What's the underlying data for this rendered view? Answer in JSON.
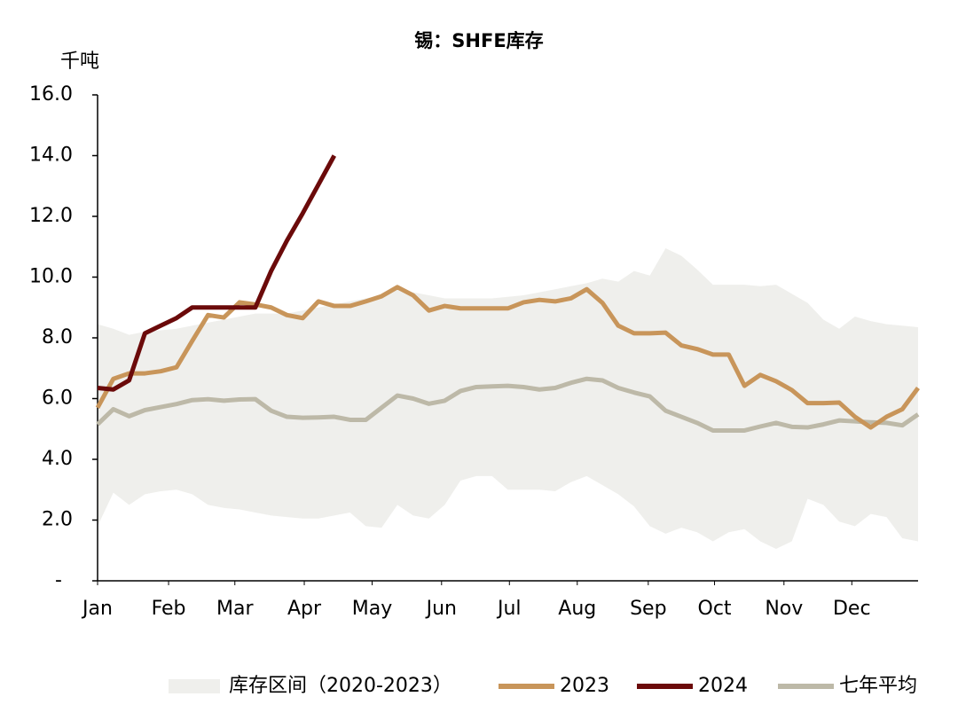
{
  "chart_data": {
    "type": "line",
    "title": "锡：SHFE库存",
    "y_label": "千吨",
    "x": [
      0,
      1,
      2,
      3,
      4,
      5,
      6,
      7,
      8,
      9,
      10,
      11,
      12,
      13,
      14,
      15,
      16,
      17,
      18,
      19,
      20,
      21,
      22,
      23,
      24,
      25,
      26,
      27,
      28,
      29,
      30,
      31,
      32,
      33,
      34,
      35,
      36,
      37,
      38,
      39,
      40,
      41,
      42,
      43,
      44,
      45,
      46,
      47,
      48,
      49,
      50,
      51,
      52
    ],
    "xlim": [
      0,
      52
    ],
    "xticks": [
      {
        "value": 0,
        "label": "Jan"
      },
      {
        "value": 4.5,
        "label": "Feb"
      },
      {
        "value": 8.7,
        "label": "Mar"
      },
      {
        "value": 13.1,
        "label": "Apr"
      },
      {
        "value": 17.4,
        "label": "May"
      },
      {
        "value": 21.8,
        "label": "Jun"
      },
      {
        "value": 26.1,
        "label": "Jul"
      },
      {
        "value": 30.4,
        "label": "Aug"
      },
      {
        "value": 34.9,
        "label": "Sep"
      },
      {
        "value": 39.1,
        "label": "Oct"
      },
      {
        "value": 43.5,
        "label": "Nov"
      },
      {
        "value": 47.8,
        "label": "Dec"
      }
    ],
    "ylim": [
      0,
      16
    ],
    "yticks": [
      {
        "value": 0,
        "label": "-"
      },
      {
        "value": 2,
        "label": "2.0"
      },
      {
        "value": 4,
        "label": "4.0"
      },
      {
        "value": 6,
        "label": "6.0"
      },
      {
        "value": 8,
        "label": "8.0"
      },
      {
        "value": 10,
        "label": "10.0"
      },
      {
        "value": 12,
        "label": "12.0"
      },
      {
        "value": 14,
        "label": "14.0"
      },
      {
        "value": 16,
        "label": "16.0"
      }
    ],
    "band": {
      "name": "库存区间（2020-2023）",
      "color": "#efefec",
      "upper": [
        8.45,
        8.3,
        8.1,
        8.2,
        8.25,
        8.3,
        8.4,
        8.5,
        8.6,
        8.7,
        8.8,
        8.8,
        8.8,
        8.9,
        9.0,
        9.1,
        9.2,
        9.3,
        9.4,
        9.6,
        9.5,
        9.4,
        9.3,
        9.3,
        9.3,
        9.3,
        9.35,
        9.4,
        9.5,
        9.6,
        9.7,
        9.8,
        9.95,
        9.85,
        10.2,
        10.05,
        10.95,
        10.7,
        10.25,
        9.75,
        9.75,
        9.75,
        9.7,
        9.75,
        9.45,
        9.15,
        8.6,
        8.3,
        8.7,
        8.55,
        8.45,
        8.4,
        8.35
      ],
      "lower": [
        1.8,
        2.9,
        2.5,
        2.85,
        2.95,
        3.0,
        2.85,
        2.5,
        2.4,
        2.35,
        2.25,
        2.15,
        2.1,
        2.05,
        2.05,
        2.15,
        2.25,
        1.8,
        1.75,
        2.5,
        2.15,
        2.05,
        2.5,
        3.3,
        3.45,
        3.45,
        3.0,
        3.0,
        3.0,
        2.95,
        3.25,
        3.45,
        3.15,
        2.85,
        2.45,
        1.8,
        1.55,
        1.75,
        1.6,
        1.3,
        1.6,
        1.7,
        1.3,
        1.05,
        1.3,
        2.7,
        2.5,
        1.95,
        1.8,
        2.2,
        2.1,
        1.4,
        1.3
      ]
    },
    "series": [
      {
        "name": "2023",
        "color": "#c8955a",
        "values": [
          5.7,
          6.65,
          6.83,
          6.83,
          6.9,
          7.03,
          7.9,
          8.75,
          8.67,
          9.17,
          9.1,
          9.0,
          8.75,
          8.65,
          9.2,
          9.05,
          9.05,
          9.2,
          9.37,
          9.67,
          9.4,
          8.9,
          9.05,
          8.97,
          8.97,
          8.97,
          8.97,
          9.17,
          9.25,
          9.2,
          9.3,
          9.6,
          9.15,
          8.4,
          8.15,
          8.15,
          8.17,
          7.75,
          7.63,
          7.45,
          7.45,
          6.42,
          6.78,
          6.57,
          6.28,
          5.85,
          5.85,
          5.87,
          5.4,
          5.05,
          5.4,
          5.65,
          6.35
        ]
      },
      {
        "name": "2024",
        "color": "#6b0a0a",
        "values": [
          6.35,
          6.3,
          6.6,
          8.15,
          8.4,
          8.65,
          9.0,
          9.0,
          9.0,
          9.0,
          9.0,
          10.2,
          11.2,
          12.1,
          13.05,
          14.0,
          null,
          null,
          null,
          null,
          null,
          null,
          null,
          null,
          null,
          null,
          null,
          null,
          null,
          null,
          null,
          null,
          null,
          null,
          null,
          null,
          null,
          null,
          null,
          null,
          null,
          null,
          null,
          null,
          null,
          null,
          null,
          null,
          null,
          null,
          null,
          null,
          null
        ]
      },
      {
        "name": "七年平均",
        "color": "#bdb9a8",
        "values": [
          5.15,
          5.65,
          5.42,
          5.62,
          5.72,
          5.82,
          5.95,
          5.98,
          5.93,
          5.97,
          5.98,
          5.6,
          5.4,
          5.37,
          5.38,
          5.4,
          5.3,
          5.3,
          5.7,
          6.1,
          6.0,
          5.83,
          5.93,
          6.25,
          6.38,
          6.4,
          6.42,
          6.38,
          6.3,
          6.35,
          6.52,
          6.65,
          6.6,
          6.35,
          6.2,
          6.07,
          5.6,
          5.4,
          5.2,
          4.95,
          4.95,
          4.95,
          5.08,
          5.2,
          5.07,
          5.05,
          5.15,
          5.28,
          5.25,
          5.22,
          5.2,
          5.12,
          5.48
        ]
      }
    ]
  }
}
